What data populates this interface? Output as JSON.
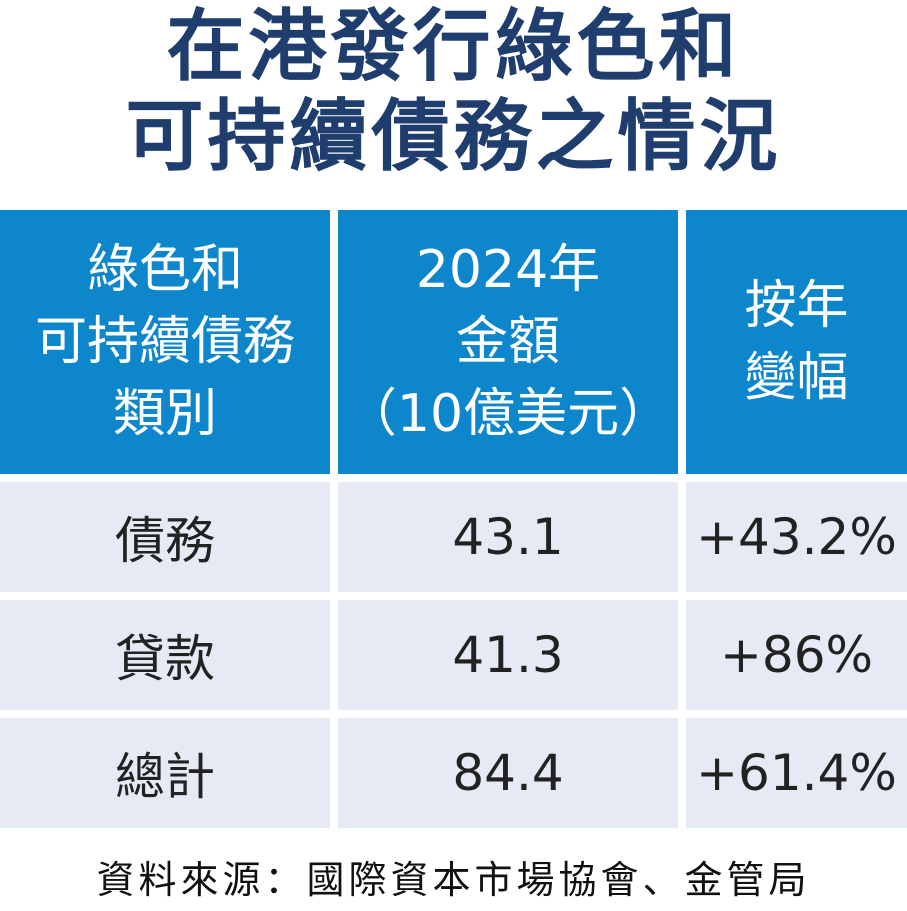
{
  "title": {
    "line1": "在港發行綠色和",
    "line2": "可持續債務之情況"
  },
  "table": {
    "headers": [
      {
        "lines": [
          "綠色和",
          "可持續債務",
          "類別"
        ]
      },
      {
        "lines": [
          "2024年",
          "金額",
          "（10億美元）"
        ]
      },
      {
        "lines": [
          "按年",
          "變幅"
        ]
      }
    ],
    "rows": [
      {
        "category": "債務",
        "amount": "43.1",
        "change": "+43.2%"
      },
      {
        "category": "貸款",
        "amount": "41.3",
        "change": "+86%"
      },
      {
        "category": "總計",
        "amount": "84.4",
        "change": "+61.4%"
      }
    ]
  },
  "chart_data": {
    "type": "table",
    "title": "在港發行綠色和可持續債務之情況",
    "columns": [
      "綠色和可持續債務類別",
      "2024年金額（10億美元）",
      "按年變幅"
    ],
    "rows": [
      [
        "債務",
        43.1,
        "+43.2%"
      ],
      [
        "貸款",
        41.3,
        "+86%"
      ],
      [
        "總計",
        84.4,
        "+61.4%"
      ]
    ]
  },
  "source": "資料來源：國際資本市場協會、金管局",
  "colors": {
    "title": "#1f3e6e",
    "header_bg": "#0e86cc",
    "header_text": "#ffffff",
    "row_bg": "#e6eaf5",
    "row_text": "#222222"
  }
}
